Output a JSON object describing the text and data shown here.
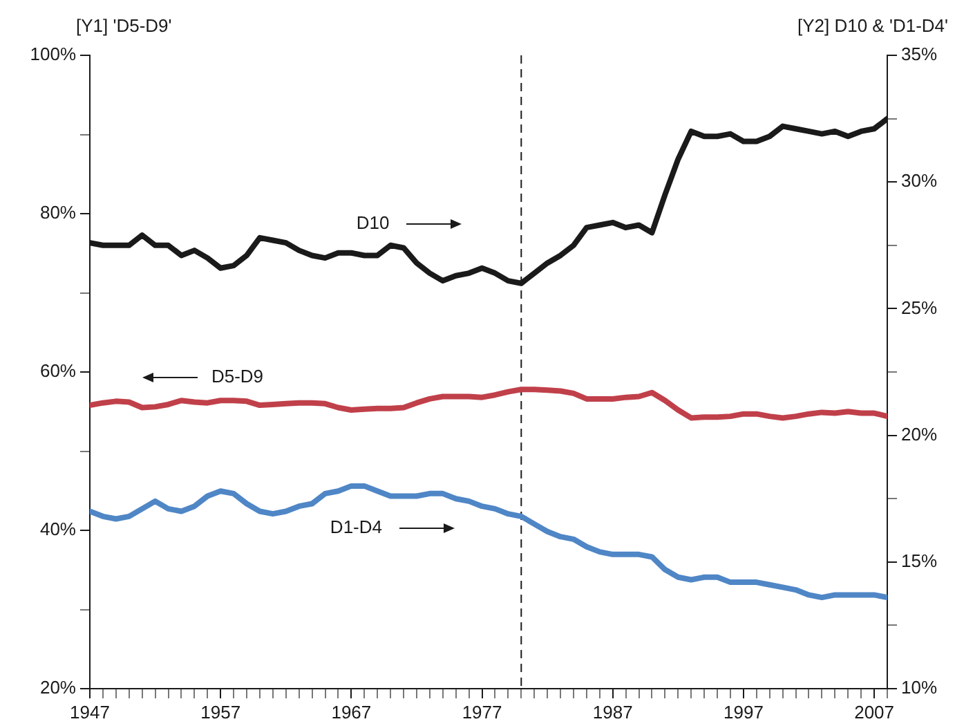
{
  "chart_data": {
    "type": "line",
    "ylabel": "[Y1] 'D5-D9'",
    "y2label": "[Y2] D10 & 'D1-D4'",
    "x": [
      1947,
      1948,
      1949,
      1950,
      1951,
      1952,
      1953,
      1954,
      1955,
      1956,
      1957,
      1958,
      1959,
      1960,
      1961,
      1962,
      1963,
      1964,
      1965,
      1966,
      1967,
      1968,
      1969,
      1970,
      1971,
      1972,
      1973,
      1974,
      1975,
      1976,
      1977,
      1978,
      1979,
      1980,
      1981,
      1982,
      1983,
      1984,
      1985,
      1986,
      1987,
      1988,
      1989,
      1990,
      1991,
      1992,
      1993,
      1994,
      1995,
      1996,
      1997,
      1998,
      1999,
      2000,
      2001,
      2002,
      2003,
      2004,
      2005,
      2006,
      2007,
      2008
    ],
    "series": [
      {
        "color": "#1a1a1a",
        "axis": "y2",
        "values": [
          27.6,
          27.5,
          27.5,
          27.5,
          27.9,
          27.5,
          27.5,
          27.1,
          27.3,
          27.0,
          26.6,
          26.7,
          27.1,
          27.8,
          27.7,
          27.6,
          27.3,
          27.1,
          27.0,
          27.2,
          27.2,
          27.1,
          27.1,
          27.5,
          27.4,
          26.8,
          26.4,
          26.1,
          26.3,
          26.4,
          26.6,
          26.4,
          26.1,
          26.0,
          26.4,
          26.8,
          27.1,
          27.5,
          28.2,
          28.3,
          28.4,
          28.2,
          28.3,
          28.0,
          29.5,
          30.9,
          32.0,
          31.8,
          31.8,
          31.9,
          31.6,
          31.6,
          31.8,
          32.2,
          32.1,
          32.0,
          31.9,
          32.0,
          31.8,
          32.0,
          32.1,
          32.5
        ]
      },
      {
        "color": "#c0404a",
        "axis": "y",
        "values": [
          55.8,
          56.1,
          56.3,
          56.2,
          55.5,
          55.6,
          55.9,
          56.4,
          56.2,
          56.1,
          56.4,
          56.4,
          56.3,
          55.8,
          55.9,
          56.0,
          56.1,
          56.1,
          56.0,
          55.5,
          55.2,
          55.3,
          55.4,
          55.4,
          55.5,
          56.1,
          56.6,
          56.9,
          56.9,
          56.9,
          56.8,
          57.1,
          57.5,
          57.8,
          57.8,
          57.7,
          57.6,
          57.3,
          56.6,
          56.6,
          56.6,
          56.8,
          56.9,
          57.4,
          56.4,
          55.2,
          54.2,
          54.3,
          54.3,
          54.4,
          54.7,
          54.7,
          54.4,
          54.2,
          54.4,
          54.7,
          54.9,
          54.8,
          55.0,
          54.8,
          54.8,
          54.4
        ]
      },
      {
        "color": "#4f86c6",
        "axis": "y2",
        "values": [
          17.0,
          16.8,
          16.7,
          16.8,
          17.1,
          17.4,
          17.1,
          17.0,
          17.2,
          17.6,
          17.8,
          17.7,
          17.3,
          17.0,
          16.9,
          17.0,
          17.2,
          17.3,
          17.7,
          17.8,
          18.0,
          18.0,
          17.8,
          17.6,
          17.6,
          17.6,
          17.7,
          17.7,
          17.5,
          17.4,
          17.2,
          17.1,
          16.9,
          16.8,
          16.5,
          16.2,
          16.0,
          15.9,
          15.6,
          15.4,
          15.3,
          15.3,
          15.3,
          15.2,
          14.7,
          14.4,
          14.3,
          14.4,
          14.4,
          14.2,
          14.2,
          14.2,
          14.1,
          14.0,
          13.9,
          13.7,
          13.6,
          13.7,
          13.7,
          13.7,
          13.7,
          13.6
        ]
      }
    ],
    "xlim": [
      1947,
      2008
    ],
    "xticks": [
      {
        "value": 1947,
        "label": "1947"
      },
      {
        "value": 1948,
        "label": null
      },
      {
        "value": 1949,
        "label": null
      },
      {
        "value": 1950,
        "label": null
      },
      {
        "value": 1951,
        "label": null
      },
      {
        "value": 1952,
        "label": null
      },
      {
        "value": 1953,
        "label": null
      },
      {
        "value": 1954,
        "label": null
      },
      {
        "value": 1955,
        "label": null
      },
      {
        "value": 1956,
        "label": null
      },
      {
        "value": 1957,
        "label": "1957"
      },
      {
        "value": 1958,
        "label": null
      },
      {
        "value": 1959,
        "label": null
      },
      {
        "value": 1960,
        "label": null
      },
      {
        "value": 1961,
        "label": null
      },
      {
        "value": 1962,
        "label": null
      },
      {
        "value": 1963,
        "label": null
      },
      {
        "value": 1964,
        "label": null
      },
      {
        "value": 1965,
        "label": null
      },
      {
        "value": 1966,
        "label": null
      },
      {
        "value": 1967,
        "label": "1967"
      },
      {
        "value": 1968,
        "label": null
      },
      {
        "value": 1969,
        "label": null
      },
      {
        "value": 1970,
        "label": null
      },
      {
        "value": 1971,
        "label": null
      },
      {
        "value": 1972,
        "label": null
      },
      {
        "value": 1973,
        "label": null
      },
      {
        "value": 1974,
        "label": null
      },
      {
        "value": 1975,
        "label": null
      },
      {
        "value": 1976,
        "label": null
      },
      {
        "value": 1977,
        "label": "1977"
      },
      {
        "value": 1978,
        "label": null
      },
      {
        "value": 1979,
        "label": null
      },
      {
        "value": 1980,
        "label": null
      },
      {
        "value": 1981,
        "label": null
      },
      {
        "value": 1982,
        "label": null
      },
      {
        "value": 1983,
        "label": null
      },
      {
        "value": 1984,
        "label": null
      },
      {
        "value": 1985,
        "label": null
      },
      {
        "value": 1986,
        "label": null
      },
      {
        "value": 1987,
        "label": "1987"
      },
      {
        "value": 1988,
        "label": null
      },
      {
        "value": 1989,
        "label": null
      },
      {
        "value": 1990,
        "label": null
      },
      {
        "value": 1991,
        "label": null
      },
      {
        "value": 1992,
        "label": null
      },
      {
        "value": 1993,
        "label": null
      },
      {
        "value": 1994,
        "label": null
      },
      {
        "value": 1995,
        "label": null
      },
      {
        "value": 1996,
        "label": null
      },
      {
        "value": 1997,
        "label": "1997"
      },
      {
        "value": 1998,
        "label": null
      },
      {
        "value": 1999,
        "label": null
      },
      {
        "value": 2000,
        "label": null
      },
      {
        "value": 2001,
        "label": null
      },
      {
        "value": 2002,
        "label": null
      },
      {
        "value": 2003,
        "label": null
      },
      {
        "value": 2004,
        "label": null
      },
      {
        "value": 2005,
        "label": null
      },
      {
        "value": 2006,
        "label": null
      },
      {
        "value": 2007,
        "label": "2007"
      },
      {
        "value": 2008,
        "label": null
      }
    ],
    "ylim": [
      20,
      100
    ],
    "yticks": [
      {
        "value": 20,
        "label": "20%"
      },
      {
        "value": 30,
        "label": null
      },
      {
        "value": 40,
        "label": "40%"
      },
      {
        "value": 50,
        "label": null
      },
      {
        "value": 60,
        "label": "60%"
      },
      {
        "value": 70,
        "label": null
      },
      {
        "value": 80,
        "label": "80%"
      },
      {
        "value": 90,
        "label": null
      },
      {
        "value": 100,
        "label": "100%"
      }
    ],
    "y2lim": [
      10,
      35
    ],
    "y2ticks": [
      {
        "value": 10,
        "label": "10%"
      },
      {
        "value": 12.5,
        "label": null
      },
      {
        "value": 15,
        "label": "15%"
      },
      {
        "value": 17.5,
        "label": null
      },
      {
        "value": 20,
        "label": "20%"
      },
      {
        "value": 22.5,
        "label": null
      },
      {
        "value": 25,
        "label": "25%"
      },
      {
        "value": 27.5,
        "label": null
      },
      {
        "value": 30,
        "label": "30%"
      },
      {
        "value": 32.5,
        "label": null
      },
      {
        "value": 35,
        "label": "35%"
      }
    ],
    "ref_lines": [
      {
        "axis": "x",
        "value": 1980,
        "label": null,
        "color": "#1a1a1a",
        "line_style": "dashed"
      }
    ],
    "annotations": [
      "D10",
      "D5-D9",
      "D1-D4"
    ],
    "grid": false,
    "legend": false,
    "marker": "none",
    "line_style": "solid"
  }
}
